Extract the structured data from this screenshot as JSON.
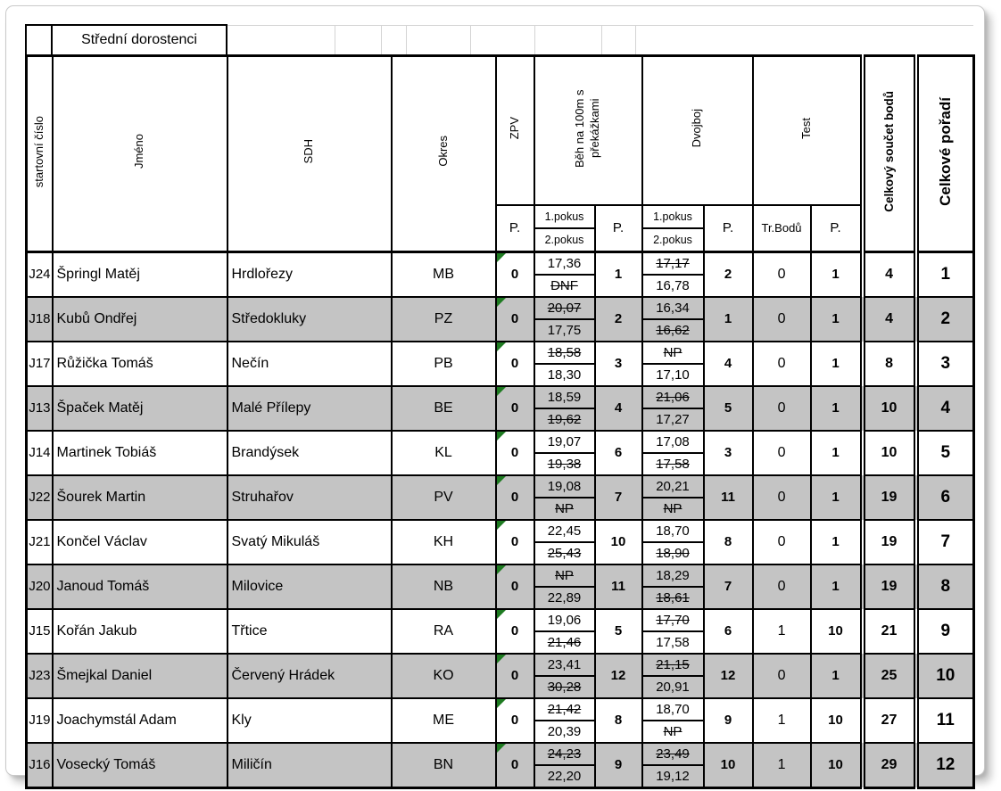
{
  "sheet": {
    "category_title": "Střední dorostenci",
    "headers": {
      "start_no": "startovní číslo",
      "name": "Jméno",
      "sdh": "SDH",
      "okres": "Okres",
      "zpv": "ZPV",
      "run_100m": "Běh na 100m s překážkami",
      "dvojboj": "Dvojboj",
      "test": "Test",
      "points": "P.",
      "attempt1": "1.pokus",
      "attempt2": "2.pokus",
      "penalty": "Tr.Bodů",
      "total": "Celkový součet bodů",
      "overall_rank": "Celkové pořadí"
    },
    "rows": [
      {
        "start_no": "J24",
        "name": "Špringl Matěj",
        "sdh": "Hrdlořezy",
        "okres": "MB",
        "zpv_p": "0",
        "run": {
          "a1": "17,36",
          "a1_struck": false,
          "a2": "DNF",
          "a2_struck": true,
          "p": "1"
        },
        "dvojboj": {
          "a1": "17,17",
          "a1_struck": true,
          "a2": "16,78",
          "a2_struck": false,
          "p": "2"
        },
        "test": {
          "penalty": "0",
          "p": "1"
        },
        "total": "4",
        "rank": "1"
      },
      {
        "start_no": "J18",
        "name": "Kubů Ondřej",
        "sdh": "Středokluky",
        "okres": "PZ",
        "zpv_p": "0",
        "run": {
          "a1": "20,07",
          "a1_struck": true,
          "a2": "17,75",
          "a2_struck": false,
          "p": "2"
        },
        "dvojboj": {
          "a1": "16,34",
          "a1_struck": false,
          "a2": "16,62",
          "a2_struck": true,
          "p": "1"
        },
        "test": {
          "penalty": "0",
          "p": "1"
        },
        "total": "4",
        "rank": "2"
      },
      {
        "start_no": "J17",
        "name": "Růžička Tomáš",
        "sdh": "Nečín",
        "okres": "PB",
        "zpv_p": "0",
        "run": {
          "a1": "18,58",
          "a1_struck": true,
          "a2": "18,30",
          "a2_struck": false,
          "p": "3"
        },
        "dvojboj": {
          "a1": "NP",
          "a1_struck": true,
          "a2": "17,10",
          "a2_struck": false,
          "p": "4"
        },
        "test": {
          "penalty": "0",
          "p": "1"
        },
        "total": "8",
        "rank": "3"
      },
      {
        "start_no": "J13",
        "name": "Špaček Matěj",
        "sdh": "Malé Přílepy",
        "okres": "BE",
        "zpv_p": "0",
        "run": {
          "a1": "18,59",
          "a1_struck": false,
          "a2": "19,62",
          "a2_struck": true,
          "p": "4"
        },
        "dvojboj": {
          "a1": "21,06",
          "a1_struck": true,
          "a2": "17,27",
          "a2_struck": false,
          "p": "5"
        },
        "test": {
          "penalty": "0",
          "p": "1"
        },
        "total": "10",
        "rank": "4"
      },
      {
        "start_no": "J14",
        "name": "Martinek Tobiáš",
        "sdh": "Brandýsek",
        "okres": "KL",
        "zpv_p": "0",
        "run": {
          "a1": "19,07",
          "a1_struck": false,
          "a2": "19,38",
          "a2_struck": true,
          "p": "6"
        },
        "dvojboj": {
          "a1": "17,08",
          "a1_struck": false,
          "a2": "17,58",
          "a2_struck": true,
          "p": "3"
        },
        "test": {
          "penalty": "0",
          "p": "1"
        },
        "total": "10",
        "rank": "5"
      },
      {
        "start_no": "J22",
        "name": "Šourek Martin",
        "sdh": "Struhařov",
        "okres": "PV",
        "zpv_p": "0",
        "run": {
          "a1": "19,08",
          "a1_struck": false,
          "a2": "NP",
          "a2_struck": true,
          "p": "7"
        },
        "dvojboj": {
          "a1": "20,21",
          "a1_struck": false,
          "a2": "NP",
          "a2_struck": true,
          "p": "11"
        },
        "test": {
          "penalty": "0",
          "p": "1"
        },
        "total": "19",
        "rank": "6"
      },
      {
        "start_no": "J21",
        "name": "Končel Václav",
        "sdh": "Svatý Mikuláš",
        "okres": "KH",
        "zpv_p": "0",
        "run": {
          "a1": "22,45",
          "a1_struck": false,
          "a2": "25,43",
          "a2_struck": true,
          "p": "10"
        },
        "dvojboj": {
          "a1": "18,70",
          "a1_struck": false,
          "a2": "18,90",
          "a2_struck": true,
          "p": "8"
        },
        "test": {
          "penalty": "0",
          "p": "1"
        },
        "total": "19",
        "rank": "7"
      },
      {
        "start_no": "J20",
        "name": "Janoud Tomáš",
        "sdh": "Milovice",
        "okres": "NB",
        "zpv_p": "0",
        "run": {
          "a1": "NP",
          "a1_struck": true,
          "a2": "22,89",
          "a2_struck": false,
          "p": "11"
        },
        "dvojboj": {
          "a1": "18,29",
          "a1_struck": false,
          "a2": "18,61",
          "a2_struck": true,
          "p": "7"
        },
        "test": {
          "penalty": "0",
          "p": "1"
        },
        "total": "19",
        "rank": "8"
      },
      {
        "start_no": "J15",
        "name": "Kořán Jakub",
        "sdh": "Třtice",
        "okres": "RA",
        "zpv_p": "0",
        "run": {
          "a1": "19,06",
          "a1_struck": false,
          "a2": "21,46",
          "a2_struck": true,
          "p": "5"
        },
        "dvojboj": {
          "a1": "17,70",
          "a1_struck": true,
          "a2": "17,58",
          "a2_struck": false,
          "p": "6"
        },
        "test": {
          "penalty": "1",
          "p": "10"
        },
        "total": "21",
        "rank": "9"
      },
      {
        "start_no": "J23",
        "name": "Šmejkal Daniel",
        "sdh": "Červený Hrádek",
        "okres": "KO",
        "zpv_p": "0",
        "run": {
          "a1": "23,41",
          "a1_struck": false,
          "a2": "30,28",
          "a2_struck": true,
          "p": "12"
        },
        "dvojboj": {
          "a1": "21,15",
          "a1_struck": true,
          "a2": "20,91",
          "a2_struck": false,
          "p": "12"
        },
        "test": {
          "penalty": "0",
          "p": "1"
        },
        "total": "25",
        "rank": "10"
      },
      {
        "start_no": "J19",
        "name": "Joachymstál Adam",
        "sdh": "Kly",
        "okres": "ME",
        "zpv_p": "0",
        "run": {
          "a1": "21,42",
          "a1_struck": true,
          "a2": "20,39",
          "a2_struck": false,
          "p": "8"
        },
        "dvojboj": {
          "a1": "18,70",
          "a1_struck": false,
          "a2": "NP",
          "a2_struck": true,
          "p": "9"
        },
        "test": {
          "penalty": "1",
          "p": "10"
        },
        "total": "27",
        "rank": "11"
      },
      {
        "start_no": "J16",
        "name": "Vosecký Tomáš",
        "sdh": "Miličín",
        "okres": "BN",
        "zpv_p": "0",
        "run": {
          "a1": "24,23",
          "a1_struck": true,
          "a2": "22,20",
          "a2_struck": false,
          "p": "9"
        },
        "dvojboj": {
          "a1": "23,49",
          "a1_struck": true,
          "a2": "19,12",
          "a2_struck": false,
          "p": "10"
        },
        "test": {
          "penalty": "1",
          "p": "10"
        },
        "total": "29",
        "rank": "12"
      }
    ]
  },
  "colors": {
    "stripe": "#c4c4c4",
    "indicator": "#1e7b21",
    "grid": "#000000",
    "faint": "#d4d4d4"
  }
}
